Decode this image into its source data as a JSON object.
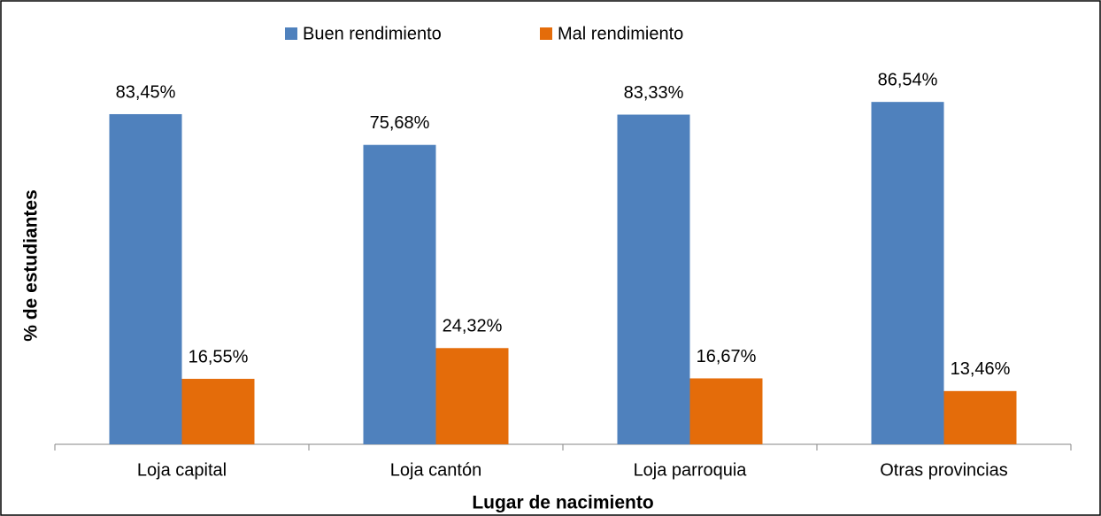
{
  "chart_data": {
    "type": "bar",
    "x_label": "Lugar de nacimiento",
    "y_label": "% de estudiantes",
    "categories": [
      "Loja capital",
      "Loja cantón",
      "Loja parroquia",
      "Otras provincias"
    ],
    "series": [
      {
        "name": "Buen rendimiento",
        "color": "#4f81bd",
        "values": [
          83.45,
          75.68,
          83.33,
          86.54
        ],
        "value_labels": [
          "83,45%",
          "75,68%",
          "83,33%",
          "86,54%"
        ]
      },
      {
        "name": "Mal rendimiento",
        "color": "#e46c0a",
        "values": [
          16.55,
          24.32,
          16.67,
          13.46
        ],
        "value_labels": [
          "16,55%",
          "24,32%",
          "16,67%",
          "13,46%"
        ]
      }
    ],
    "ylim": [
      0,
      100
    ],
    "legend": "top"
  }
}
